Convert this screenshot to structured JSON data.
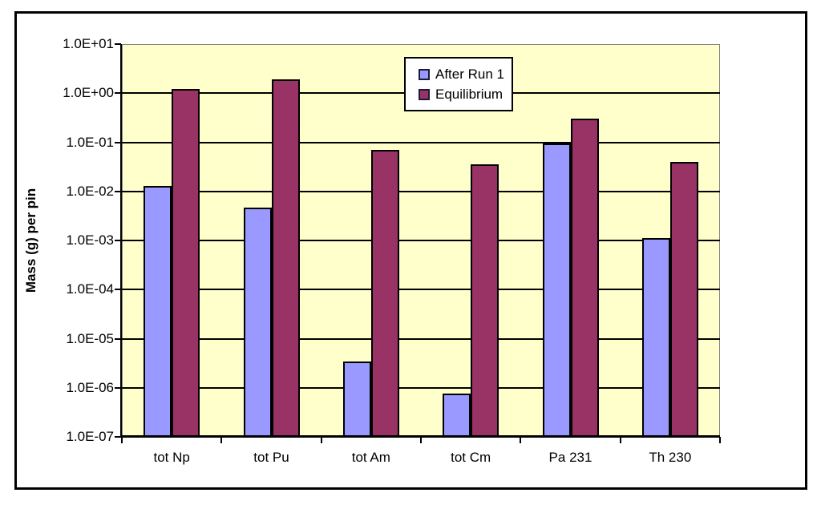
{
  "chart_data": {
    "type": "bar",
    "title": "",
    "ylabel": "Mass (g) per pin",
    "xlabel": "",
    "categories": [
      "tot Np",
      "tot Pu",
      "tot Am",
      "tot Cm",
      "Pa 231",
      "Th 230"
    ],
    "series": [
      {
        "name": "After Run 1",
        "color": "#9999FF",
        "values": [
          0.013,
          0.0046,
          3.4e-06,
          7.5e-07,
          0.095,
          0.0011
        ]
      },
      {
        "name": "Equilibrium",
        "color": "#993366",
        "values": [
          1.2,
          1.9,
          0.07,
          0.036,
          0.3,
          0.04
        ]
      }
    ],
    "y_axis": {
      "scale": "log",
      "min": 1e-07,
      "max": 10.0,
      "tick_labels": [
        "1.0E+01",
        "1.0E+00",
        "1.0E-01",
        "1.0E-02",
        "1.0E-03",
        "1.0E-04",
        "1.0E-05",
        "1.0E-06",
        "1.0E-07"
      ]
    },
    "grid": true,
    "legend_position": "top-center",
    "plot_background": "#FFFFCC",
    "gridline_color": "#000000"
  }
}
